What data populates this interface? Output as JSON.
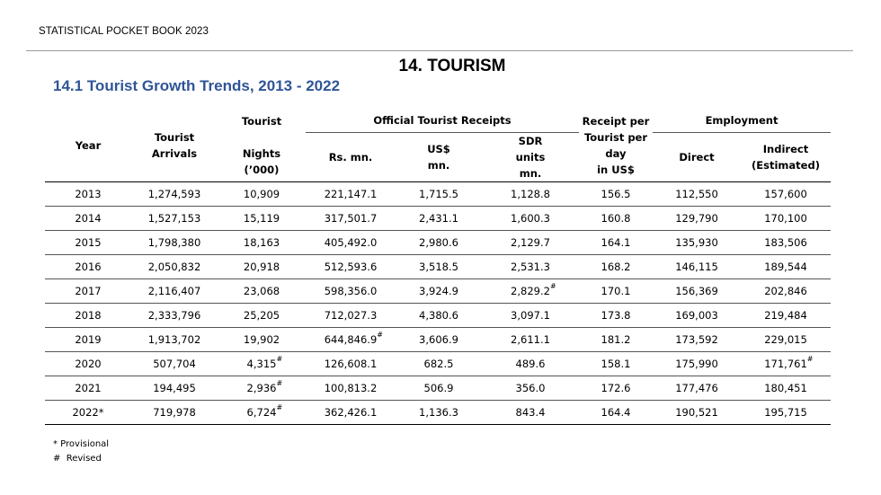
{
  "running_head": "STATISTICAL POCKET BOOK 2023",
  "chapter_title": "14. TOURISM",
  "section_title": "14.1 Tourist Growth Trends, 2013 - 2022",
  "table": {
    "headers": {
      "year": "Year",
      "arrivals": [
        "Tourist",
        "Arrivals"
      ],
      "nights": [
        "Tourist",
        "Nights",
        "(’000)"
      ],
      "receipts_group": "Official Tourist Receipts",
      "receipts_rs": "Rs. mn.",
      "receipts_usd": [
        "US$",
        "mn."
      ],
      "receipts_sdr": [
        "SDR",
        "units",
        "mn."
      ],
      "receipt_per_day": [
        "Receipt per",
        "Tourist per",
        "day",
        "in US$"
      ],
      "employment_group": "Employment",
      "direct": "Direct",
      "indirect": [
        "Indirect",
        "(Estimated)"
      ]
    },
    "rows": [
      [
        "2013",
        "1,274,593",
        "10,909",
        "221,147.1",
        "1,715.5",
        "1,128.8",
        "156.5",
        "112,550",
        "157,600"
      ],
      [
        "2014",
        "1,527,153",
        "15,119",
        "317,501.7",
        "2,431.1",
        "1,600.3",
        "160.8",
        "129,790",
        "170,100"
      ],
      [
        "2015",
        "1,798,380",
        "18,163",
        "405,492.0",
        "2,980.6",
        "2,129.7",
        "164.1",
        "135,930",
        "183,506"
      ],
      [
        "2016",
        "2,050,832",
        "20,918",
        "512,593.6",
        "3,518.5",
        "2,531.3",
        "168.2",
        "146,115",
        "189,544"
      ],
      [
        "2017",
        "2,116,407",
        "23,068",
        "598,356.0",
        "3,924.9",
        "2,829.2#",
        "170.1",
        "156,369",
        "202,846"
      ],
      [
        "2018",
        "2,333,796",
        "25,205",
        "712,027.3",
        "4,380.6",
        "3,097.1",
        "173.8",
        "169,003",
        "219,484"
      ],
      [
        "2019",
        "1,913,702",
        "19,902",
        "644,846.9#",
        "3,606.9",
        "2,611.1",
        "181.2",
        "173,592",
        "229,015"
      ],
      [
        "2020",
        "507,704",
        "4,315#",
        "126,608.1",
        "682.5",
        "489.6",
        "158.1",
        "175,990",
        "171,761#"
      ],
      [
        "2021",
        "194,495",
        "2,936#",
        "100,813.2",
        "506.9",
        "356.0",
        "172.6",
        "177,476",
        "180,451"
      ],
      [
        "2022*",
        "719,978",
        "6,724#",
        "362,426.1",
        "1,136.3",
        "843.4",
        "164.4",
        "190,521",
        "195,715"
      ]
    ]
  },
  "notes": [
    "* Provisional",
    "#  Revised"
  ]
}
